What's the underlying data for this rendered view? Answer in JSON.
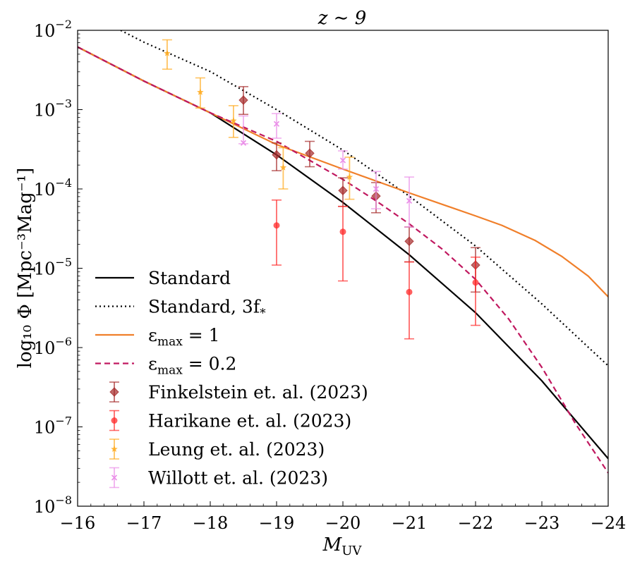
{
  "chart_data": {
    "type": "line",
    "title": "z ∼ 9",
    "xlabel": "M",
    "xlabel_sub": "UV",
    "ylabel": "log₁₀ Φ [Mpc⁻³Mag⁻¹]",
    "xlim": [
      -16,
      -24
    ],
    "ylim_log10": [
      -8,
      -2
    ],
    "x_ticks": [
      -16,
      -17,
      -18,
      -19,
      -20,
      -21,
      -22,
      -23,
      -24
    ],
    "x_tick_labels": [
      "−16",
      "−17",
      "−18",
      "−19",
      "−20",
      "−21",
      "−22",
      "−23",
      "−24"
    ],
    "y_ticks_log10": [
      -8,
      -7,
      -6,
      -5,
      -4,
      -3,
      -2
    ],
    "y_tick_labels": [
      {
        "base": "10",
        "exp": "−8"
      },
      {
        "base": "10",
        "exp": "−7"
      },
      {
        "base": "10",
        "exp": "−6"
      },
      {
        "base": "10",
        "exp": "−5"
      },
      {
        "base": "10",
        "exp": "−4"
      },
      {
        "base": "10",
        "exp": "−3"
      },
      {
        "base": "10",
        "exp": "−2"
      }
    ],
    "legend_position": "lower-left",
    "lines": [
      {
        "name": "Standard",
        "color": "#000000",
        "dash": "solid",
        "x": [
          -16,
          -17,
          -18,
          -19,
          -20,
          -21,
          -22,
          -23,
          -24
        ],
        "log10y": [
          -2.21,
          -2.64,
          -3.04,
          -3.57,
          -4.17,
          -4.83,
          -5.56,
          -6.42,
          -7.4
        ]
      },
      {
        "name": "Standard, 3f*",
        "color": "#000000",
        "dash": "dotted",
        "x": [
          -16.65,
          -17,
          -18,
          -19,
          -20,
          -21,
          -22,
          -23,
          -24
        ],
        "log10y": [
          -2.0,
          -2.15,
          -2.52,
          -3.0,
          -3.51,
          -4.09,
          -4.72,
          -5.45,
          -6.23
        ]
      },
      {
        "name": "ε_max = 1",
        "color": "#f07f2a",
        "dash": "solid",
        "x": [
          -16,
          -17,
          -18,
          -19,
          -20,
          -21,
          -22,
          -22.4,
          -22.9,
          -23.3,
          -23.7,
          -24
        ],
        "log10y": [
          -2.21,
          -2.64,
          -3.04,
          -3.44,
          -3.75,
          -4.05,
          -4.34,
          -4.46,
          -4.65,
          -4.85,
          -5.1,
          -5.36
        ]
      },
      {
        "name": "ε_max = 0.2",
        "color": "#c0185f",
        "dash": "dashed",
        "x": [
          -16,
          -17,
          -18,
          -19,
          -20,
          -20.5,
          -21,
          -21.5,
          -22,
          -22.5,
          -23,
          -23.5,
          -24
        ],
        "log10y": [
          -2.21,
          -2.64,
          -3.04,
          -3.4,
          -3.88,
          -4.15,
          -4.44,
          -4.76,
          -5.14,
          -5.64,
          -6.25,
          -6.95,
          -7.58
        ]
      }
    ],
    "series": [
      {
        "name": "Finkelstein et. al. (2023)",
        "color": "#a52a2a",
        "marker": "diamond",
        "points": [
          {
            "x": -18.5,
            "y": -2.88,
            "lo": -3.06,
            "hi": -2.71
          },
          {
            "x": -19.0,
            "y": -3.57,
            "lo": -3.77,
            "hi": -3.42
          },
          {
            "x": -19.5,
            "y": -3.55,
            "lo": -3.72,
            "hi": -3.4
          },
          {
            "x": -20.0,
            "y": -4.02,
            "lo": -4.22,
            "hi": -3.86
          },
          {
            "x": -20.5,
            "y": -4.09,
            "lo": -4.3,
            "hi": -3.92
          },
          {
            "x": -21.0,
            "y": -4.66,
            "lo": -4.92,
            "hi": -4.48
          },
          {
            "x": -22.0,
            "y": -4.96,
            "lo": -5.3,
            "hi": -4.74
          }
        ]
      },
      {
        "name": "Harikane et. al. (2023)",
        "color": "#ff2a2a",
        "marker": "circle",
        "points": [
          {
            "x": -19.0,
            "y": -4.46,
            "lo": -4.96,
            "hi": -4.14
          },
          {
            "x": -20.0,
            "y": -4.54,
            "lo": -5.16,
            "hi": -4.22
          },
          {
            "x": -21.0,
            "y": -5.3,
            "lo": -5.89,
            "hi": -4.92
          },
          {
            "x": -22.0,
            "y": -5.18,
            "lo": -5.72,
            "hi": -4.86
          }
        ]
      },
      {
        "name": "Leung et. al. (2023)",
        "color": "#ffaa1e",
        "marker": "star",
        "points": [
          {
            "x": -17.35,
            "y": -2.29,
            "lo": -2.49,
            "hi": -2.12
          },
          {
            "x": -17.85,
            "y": -2.78,
            "lo": -2.98,
            "hi": -2.6
          },
          {
            "x": -18.35,
            "y": -3.14,
            "lo": -3.35,
            "hi": -2.95
          },
          {
            "x": -19.1,
            "y": -3.73,
            "lo": -4.0,
            "hi": -3.48
          },
          {
            "x": -20.1,
            "y": -3.85,
            "lo": -4.13,
            "hi": -3.6
          }
        ]
      },
      {
        "name": "Willott et. al. (2023)",
        "color": "#ea8ee8",
        "marker": "x",
        "points": [
          {
            "x": -18.5,
            "y": -3.42,
            "lo": -3.43,
            "hi": -3.08
          },
          {
            "x": -19.0,
            "y": -3.18,
            "lo": -3.36,
            "hi": -3.05
          },
          {
            "x": -20.0,
            "y": -3.64,
            "lo": -3.75,
            "hi": -3.52
          },
          {
            "x": -20.5,
            "y": -4.0,
            "lo": -4.25,
            "hi": -3.78
          },
          {
            "x": -21.0,
            "y": -4.15,
            "lo": -4.48,
            "hi": -3.85
          }
        ]
      }
    ],
    "legend_lines": [
      {
        "label": "Standard",
        "color": "#000000",
        "dash": "solid"
      },
      {
        "label": "Standard, 3f",
        "sub": "*",
        "color": "#000000",
        "dash": "dotted"
      },
      {
        "label": "ε",
        "sub": "max",
        "rest": " = 1",
        "color": "#f07f2a",
        "dash": "solid"
      },
      {
        "label": "ε",
        "sub": "max",
        "rest": " = 0.2",
        "color": "#c0185f",
        "dash": "dashed"
      }
    ]
  }
}
